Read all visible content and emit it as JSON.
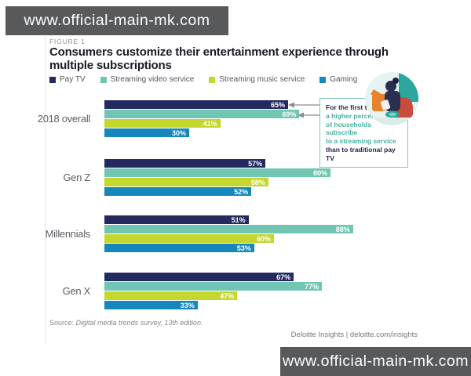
{
  "watermark": {
    "text": "www.official-main-mk.com",
    "bg_color": "#58595b"
  },
  "figure": {
    "label": "FIGURE 1",
    "title": "Consumers customize their entertainment experience through multiple subscriptions"
  },
  "chart_data": {
    "type": "bar",
    "orientation": "horizontal",
    "categories": [
      "2018 overall",
      "Gen Z",
      "Millennials",
      "Gen X"
    ],
    "series": [
      {
        "name": "Pay TV",
        "color": "#232a60",
        "values": [
          65,
          57,
          51,
          67
        ]
      },
      {
        "name": "Streaming video service",
        "color": "#70c6b2",
        "values": [
          69,
          80,
          88,
          77
        ]
      },
      {
        "name": "Streaming music service",
        "color": "#c5d72f",
        "values": [
          41,
          58,
          60,
          47
        ]
      },
      {
        "name": "Gaming",
        "color": "#1587bb",
        "values": [
          30,
          52,
          53,
          33
        ]
      }
    ],
    "value_suffix": "%",
    "xlim": [
      0,
      100
    ],
    "grid": false,
    "legend_position": "top",
    "value_labels": "inside-end"
  },
  "annotation": {
    "lines": [
      {
        "text": "For the first time,",
        "emphasis": false
      },
      {
        "text": "a higher percentage",
        "emphasis": true
      },
      {
        "text": "of households subscribe",
        "emphasis": true
      },
      {
        "text": "to a streaming service",
        "emphasis": true
      },
      {
        "text": "than to traditional pay TV",
        "emphasis": false
      }
    ],
    "navy_color": "#23294f",
    "teal_color": "#45b0a2",
    "border_color": "#7cc7b9"
  },
  "source": {
    "prefix": "Source: ",
    "text": "Digital media trends survey, 13th edition."
  },
  "footer": {
    "credit": "Deloitte Insights | deloitte.com/insights"
  },
  "icons": {
    "illustration": "person-watching-illustration"
  }
}
